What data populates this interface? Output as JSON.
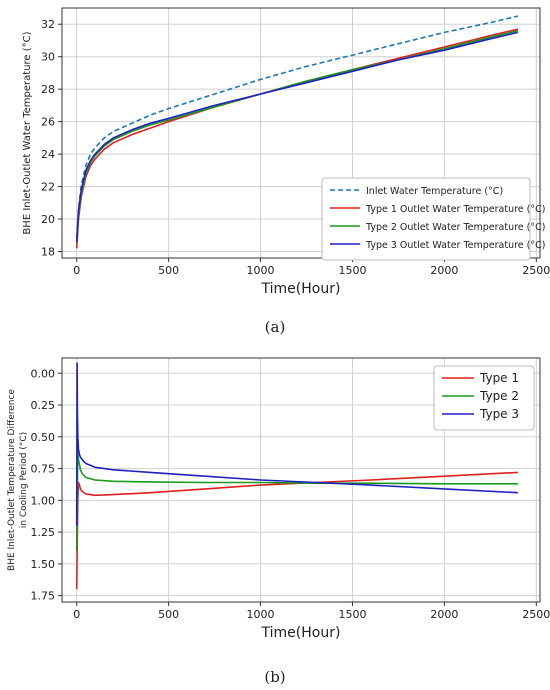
{
  "chart_data": [
    {
      "type": "line",
      "panel_label": "(a)",
      "xlabel": "Time(Hour)",
      "ylabel": "BHE Inlet-Outlet Water Temperature (°C)",
      "xlim": [
        -80,
        2520
      ],
      "ylim": [
        17.6,
        33
      ],
      "xticks": [
        0,
        500,
        1000,
        1500,
        2000,
        2500
      ],
      "yticks": [
        18,
        20,
        22,
        24,
        26,
        28,
        30,
        32
      ],
      "y_inverted": false,
      "grid": true,
      "legend_position": "lower-right",
      "series": [
        {
          "name": "Inlet Water Temperature (°C)",
          "color": "#1f77b4",
          "dash": "dashed",
          "x": [
            0,
            10,
            25,
            50,
            75,
            100,
            150,
            200,
            300,
            400,
            500,
            750,
            1000,
            1250,
            1500,
            1750,
            2000,
            2250,
            2400
          ],
          "y": [
            18.8,
            20.6,
            22.1,
            23.3,
            24.0,
            24.4,
            25.0,
            25.4,
            25.9,
            26.4,
            26.8,
            27.7,
            28.6,
            29.4,
            30.1,
            30.8,
            31.5,
            32.1,
            32.5
          ]
        },
        {
          "name": "Type 1 Outlet Water Temperature (°C)",
          "color": "#e02020",
          "dash": "solid",
          "x": [
            0,
            10,
            25,
            50,
            75,
            100,
            150,
            200,
            300,
            400,
            500,
            750,
            1000,
            1250,
            1500,
            1750,
            2000,
            2250,
            2400
          ],
          "y": [
            18.2,
            20.0,
            21.4,
            22.6,
            23.3,
            23.7,
            24.3,
            24.7,
            25.2,
            25.6,
            26.0,
            26.9,
            27.7,
            28.5,
            29.2,
            29.9,
            30.6,
            31.3,
            31.7
          ]
        },
        {
          "name": "Type 2 Outlet Water Temperature (°C)",
          "color": "#1a9a1a",
          "dash": "solid",
          "x": [
            0,
            10,
            25,
            50,
            75,
            100,
            150,
            200,
            300,
            400,
            500,
            750,
            1000,
            1250,
            1500,
            1750,
            2000,
            2250,
            2400
          ],
          "y": [
            18.5,
            20.3,
            21.6,
            22.8,
            23.5,
            23.9,
            24.5,
            24.9,
            25.4,
            25.8,
            26.1,
            26.9,
            27.7,
            28.5,
            29.2,
            29.8,
            30.5,
            31.2,
            31.6
          ]
        },
        {
          "name": "Type 3 Outlet Water Temperature (°C)",
          "color": "#2020c0",
          "dash": "solid",
          "x": [
            0,
            10,
            25,
            50,
            75,
            100,
            150,
            200,
            300,
            400,
            500,
            750,
            1000,
            1250,
            1500,
            1750,
            2000,
            2250,
            2400
          ],
          "y": [
            18.6,
            20.5,
            21.8,
            23.0,
            23.6,
            24.0,
            24.6,
            25.0,
            25.5,
            25.9,
            26.2,
            27.0,
            27.7,
            28.4,
            29.1,
            29.8,
            30.4,
            31.1,
            31.5
          ]
        }
      ]
    },
    {
      "type": "line",
      "panel_label": "(b)",
      "xlabel": "Time(Hour)",
      "ylabel": [
        "BHE Inlet-Outlet Temperature Difference",
        "in Cooling Period (°C)"
      ],
      "xlim": [
        -80,
        2520
      ],
      "ylim": [
        1.8,
        -0.12
      ],
      "xticks": [
        0,
        500,
        1000,
        1500,
        2000,
        2500
      ],
      "yticks": [
        0.0,
        0.25,
        0.5,
        0.75,
        1.0,
        1.25,
        1.5,
        1.75
      ],
      "ytick_labels": [
        "0.00",
        "0.25",
        "0.50",
        "0.75",
        "1.00",
        "1.25",
        "1.50",
        "1.75"
      ],
      "y_inverted": true,
      "grid": true,
      "legend_position": "top-right",
      "series": [
        {
          "name": "Type 1",
          "color": "#e02020",
          "dash": "solid",
          "x": [
            0,
            3,
            6,
            10,
            15,
            20,
            30,
            50,
            100,
            200,
            400,
            700,
            1000,
            1300,
            1600,
            2000,
            2400
          ],
          "y": [
            1.7,
            1.3,
            1.0,
            0.86,
            0.88,
            0.91,
            0.93,
            0.95,
            0.96,
            0.955,
            0.94,
            0.91,
            0.88,
            0.86,
            0.84,
            0.81,
            0.78
          ]
        },
        {
          "name": "Type 2",
          "color": "#1a9a1a",
          "dash": "solid",
          "x": [
            0,
            3,
            6,
            10,
            15,
            20,
            30,
            50,
            100,
            200,
            400,
            700,
            1000,
            1300,
            1600,
            2000,
            2400
          ],
          "y": [
            1.4,
            0.9,
            0.6,
            0.68,
            0.72,
            0.76,
            0.79,
            0.82,
            0.84,
            0.85,
            0.855,
            0.86,
            0.86,
            0.865,
            0.865,
            0.87,
            0.87
          ]
        },
        {
          "name": "Type 3",
          "color": "#2020c0",
          "dash": "solid",
          "x": [
            0,
            2,
            4,
            6,
            10,
            15,
            20,
            30,
            50,
            100,
            200,
            400,
            700,
            1000,
            1300,
            1600,
            2000,
            2400
          ],
          "y": [
            1.2,
            -0.08,
            0.3,
            0.5,
            0.6,
            0.64,
            0.66,
            0.68,
            0.71,
            0.74,
            0.76,
            0.78,
            0.81,
            0.84,
            0.86,
            0.88,
            0.91,
            0.94
          ]
        }
      ]
    }
  ]
}
